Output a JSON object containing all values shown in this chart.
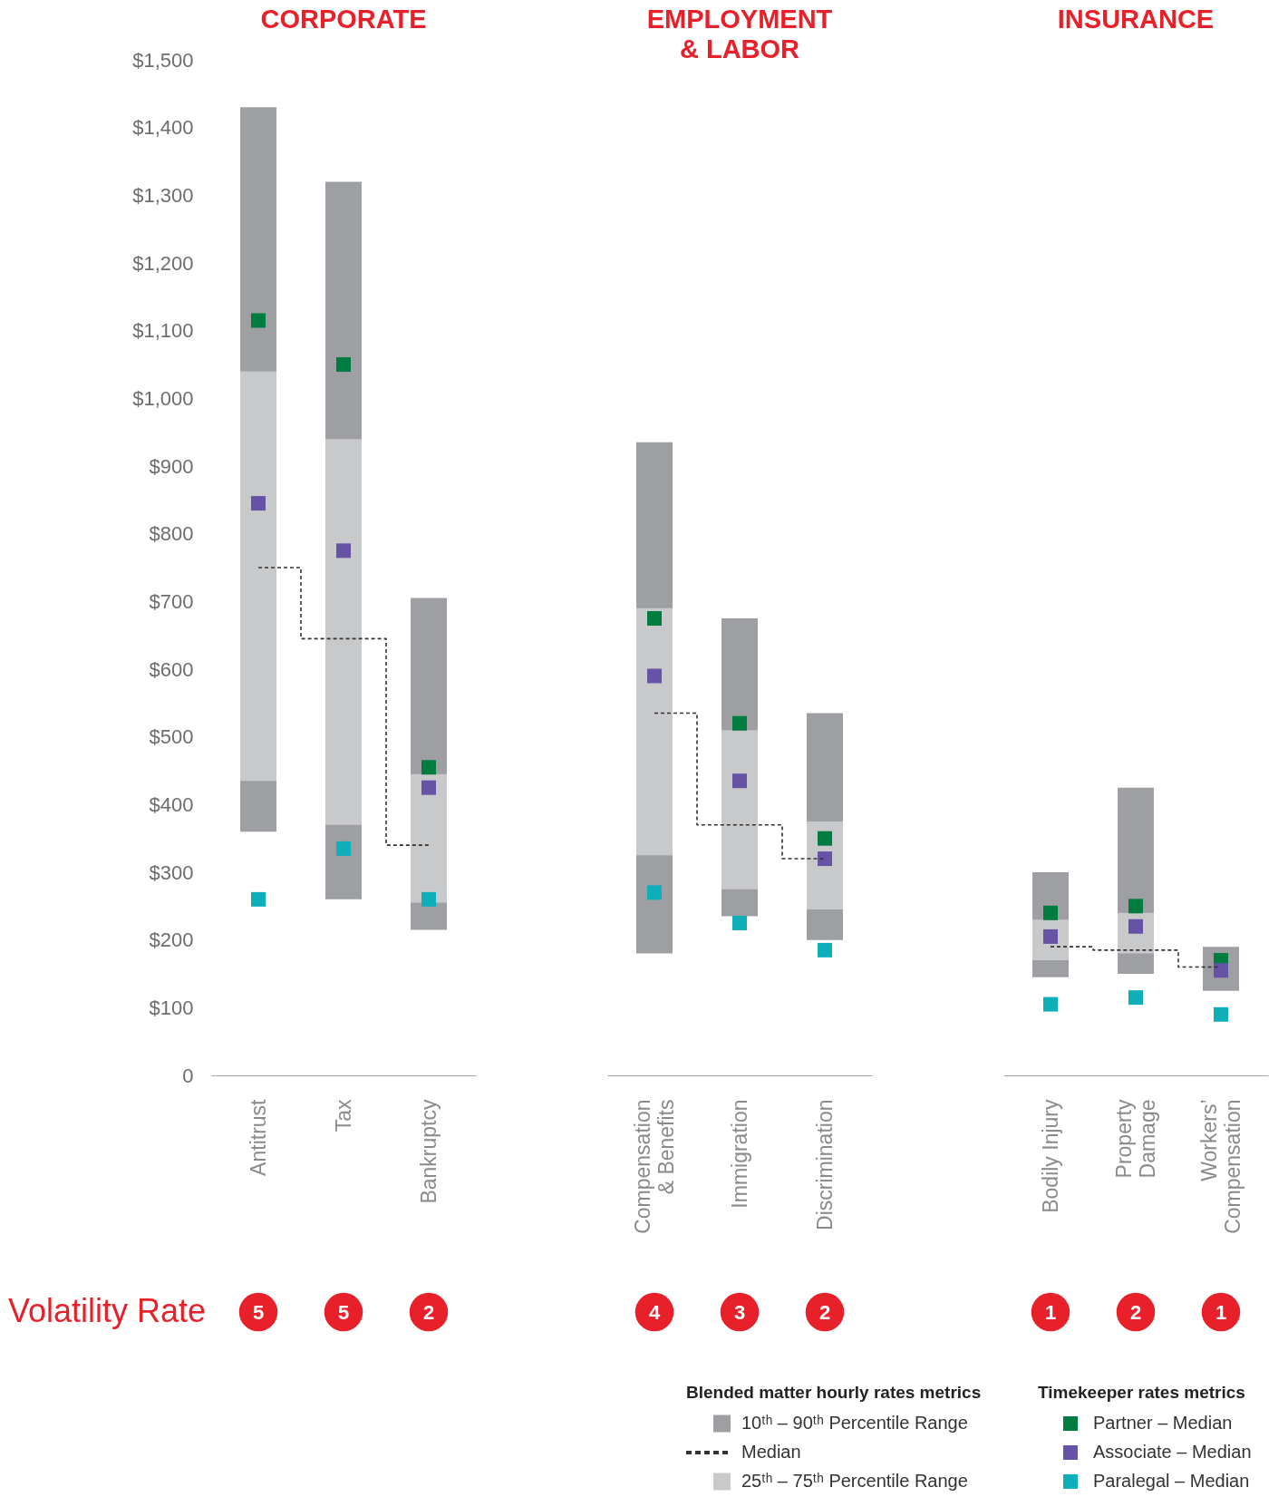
{
  "chart_data": [
    {
      "type": "bar",
      "title": "CORPORATE",
      "categories": [
        "Antitrust",
        "Tax",
        "Bankruptcy"
      ],
      "ylim": [
        0,
        1500
      ],
      "yticks": [
        0,
        {
          "value": 100,
          "label": "$100"
        },
        {
          "value": 200,
          "label": "$200"
        },
        {
          "value": 300,
          "label": "$300"
        },
        {
          "value": 400,
          "label": "$400"
        },
        {
          "value": 500,
          "label": "$500"
        },
        {
          "value": 600,
          "label": "$600"
        },
        {
          "value": 700,
          "label": "$700"
        },
        {
          "value": 800,
          "label": "$800"
        },
        {
          "value": 900,
          "label": "$900"
        },
        {
          "value": 1000,
          "label": "$1,000"
        },
        {
          "value": 1100,
          "label": "$1,100"
        },
        {
          "value": 1200,
          "label": "$1,200"
        },
        {
          "value": 1300,
          "label": "$1,300"
        },
        {
          "value": 1400,
          "label": "$1,400"
        },
        {
          "value": 1500,
          "label": "$1,500"
        }
      ],
      "series": [
        {
          "color": "#9e9fa3",
          "base": [
            360,
            260,
            215
          ],
          "values": [
            1070,
            1060,
            490
          ]
        },
        {
          "type": "step",
          "color": "#333333",
          "line_style": "dashed",
          "values": [
            750,
            645,
            340
          ]
        },
        {
          "color": "#c8c9cb",
          "base": [
            435,
            370,
            255
          ],
          "values": [
            605,
            570,
            190
          ]
        },
        {
          "type": "scatter",
          "marker": "square",
          "color": "#007c41",
          "values": [
            1115,
            1050,
            455
          ]
        },
        {
          "type": "scatter",
          "marker": "square",
          "color": "#6753a6",
          "values": [
            845,
            775,
            425
          ]
        },
        {
          "type": "scatter",
          "marker": "square",
          "color": "#0fafb9",
          "values": [
            260,
            335,
            260
          ]
        }
      ],
      "annotations": [
        "Volatility Rate",
        "5",
        "5",
        "2"
      ]
    },
    {
      "type": "bar",
      "title": "EMPLOYMENT\n& LABOR",
      "categories": [
        "Compensation\n& Benefits",
        "Immigration",
        "Discrimination"
      ],
      "ylim": [
        0,
        1500
      ],
      "tick_labels": "x",
      "series": [
        {
          "name": "10ᵗʰ – 90ᵗʰ Percentile Range",
          "color": "#9e9fa3",
          "base": [
            180,
            235,
            200
          ],
          "values": [
            755,
            440,
            335
          ]
        },
        {
          "name": "Median",
          "type": "step",
          "color": "#333333",
          "line_style": "dashed",
          "values": [
            535,
            370,
            320
          ]
        },
        {
          "name": "25ᵗʰ – 75ᵗʰ Percentile Range",
          "color": "#c8c9cb",
          "base": [
            325,
            275,
            245
          ],
          "values": [
            365,
            235,
            130
          ]
        },
        {
          "type": "scatter",
          "marker": "square",
          "color": "#007c41",
          "values": [
            675,
            520,
            350
          ]
        },
        {
          "type": "scatter",
          "marker": "square",
          "color": "#6753a6",
          "values": [
            590,
            435,
            320
          ]
        },
        {
          "type": "scatter",
          "marker": "square",
          "color": "#0fafb9",
          "values": [
            270,
            225,
            185
          ]
        }
      ],
      "annotations": [
        "4",
        "3",
        "2"
      ],
      "legend": "bottom",
      "legend_title": "Blended matter hourly rates metrics"
    },
    {
      "type": "bar",
      "title": "INSURANCE",
      "categories": [
        "Bodily Injury",
        "Property\nDamage",
        "Workers’\nCompensation"
      ],
      "ylim": [
        0,
        1500
      ],
      "tick_labels": "x",
      "series": [
        {
          "color": "#9e9fa3",
          "base": [
            145,
            150,
            125
          ],
          "values": [
            155,
            275,
            65
          ]
        },
        {
          "type": "step",
          "color": "#333333",
          "line_style": "dashed",
          "values": [
            190,
            185,
            160
          ]
        },
        {
          "color": "#c8c9cb",
          "base": [
            170,
            180,
            null
          ],
          "values": [
            60,
            60,
            null
          ]
        },
        {
          "name": "Partner – Median",
          "type": "scatter",
          "marker": "square",
          "color": "#007c41",
          "values": [
            240,
            250,
            170
          ]
        },
        {
          "name": "Associate – Median",
          "type": "scatter",
          "marker": "square",
          "color": "#6753a6",
          "values": [
            205,
            220,
            155
          ]
        },
        {
          "name": "Paralegal – Median",
          "type": "scatter",
          "marker": "square",
          "color": "#0fafb9",
          "values": [
            105,
            115,
            90
          ]
        }
      ],
      "annotations": [
        "1",
        "2",
        "1"
      ],
      "legend": "bottom",
      "legend_title": "Timekeeper rates metrics"
    }
  ]
}
